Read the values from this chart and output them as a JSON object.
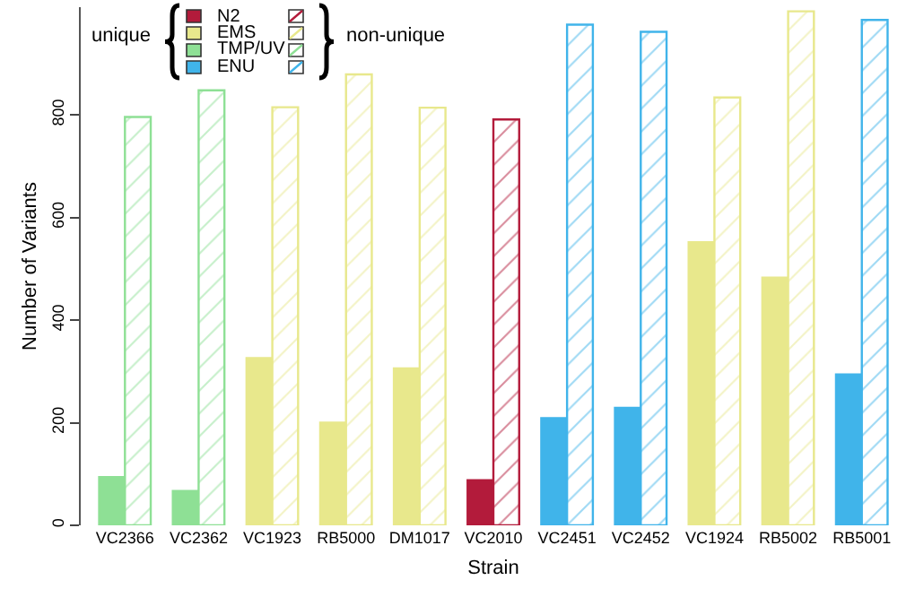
{
  "chart_data": {
    "type": "bar",
    "xlabel": "Strain",
    "ylabel": "Number of Variants",
    "categories": [
      "VC2366",
      "VC2362",
      "VC1923",
      "RB5000",
      "DM1017",
      "VC2010",
      "VC2451",
      "VC2452",
      "VC1924",
      "RB5002",
      "RB5001"
    ],
    "series": [
      {
        "name": "N2",
        "color": "#b31b3b",
        "values": [
          null,
          null,
          null,
          null,
          null,
          88,
          null,
          null,
          null,
          null,
          null
        ]
      },
      {
        "color": "#b31b3b",
        "values": [
          null,
          null,
          null,
          null,
          null,
          791,
          null,
          null,
          null,
          null,
          null
        ]
      },
      {
        "name": "EMS",
        "color": "#e8e88c",
        "values": [
          null,
          null,
          326,
          200,
          306,
          null,
          null,
          null,
          552,
          483,
          null
        ]
      },
      {
        "color": "#e8e88c",
        "values": [
          null,
          null,
          815,
          879,
          814,
          null,
          null,
          null,
          834,
          1002,
          null
        ]
      },
      {
        "name": "TMP/UV",
        "color": "#8ee095",
        "values": [
          94,
          67,
          null,
          null,
          null,
          null,
          null,
          null,
          null,
          null,
          null
        ]
      },
      {
        "color": "#8ee095",
        "values": [
          796,
          848,
          null,
          null,
          null,
          null,
          null,
          null,
          null,
          null,
          null
        ]
      },
      {
        "name": "ENU",
        "color": "#40b4ea",
        "values": [
          null,
          null,
          null,
          null,
          null,
          null,
          209,
          229,
          null,
          null,
          294
        ]
      },
      {
        "color": "#40b4ea",
        "values": [
          null,
          null,
          null,
          null,
          null,
          null,
          976,
          962,
          null,
          null,
          985
        ]
      }
    ],
    "annotations": [
      "unique",
      "non-unique"
    ],
    "ylim": [
      0,
      1010
    ],
    "yticks": [
      0,
      200,
      400,
      600,
      800
    ],
    "legend": "top left"
  }
}
